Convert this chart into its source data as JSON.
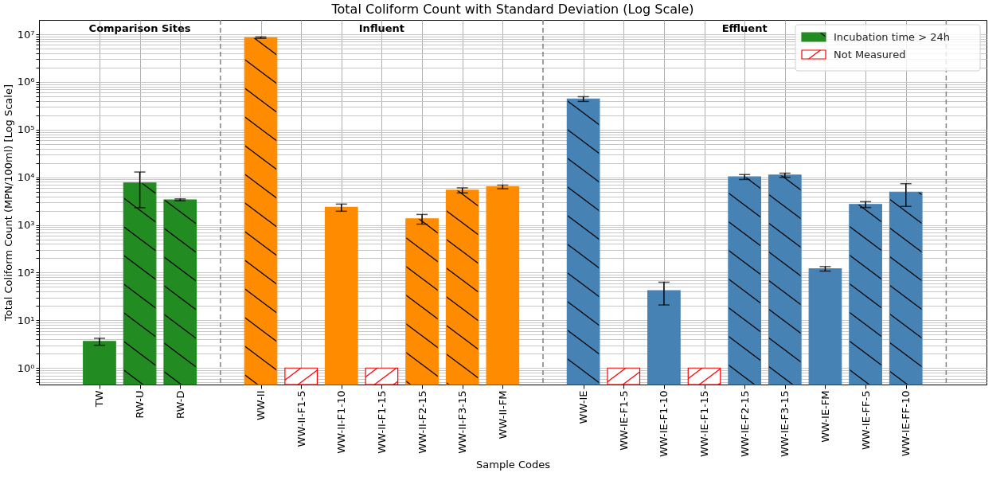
{
  "chart_data": {
    "type": "bar",
    "title": "Total Coliform Count with Standard Deviation (Log Scale)",
    "xlabel": "Sample Codes",
    "ylabel": "Total Coliform Count (MPN/100ml) [Log Scale]",
    "categories": [
      "TW",
      "RW-U",
      "RW-D",
      null,
      "WW-II",
      "WW-II-F1-5",
      "WW-II-F1-10",
      "WW-II-F1-15",
      "WW-II-F2-15",
      "WW-II-F3-15",
      "WW-II-FM",
      null,
      "WW-IE",
      "WW-IE-F1-5",
      "WW-IE-F1-10",
      "WW-IE-F1-15",
      "WW-IE-F2-15",
      "WW-IE-F3-15",
      "WW-IE-FM",
      "WW-IE-FF-5",
      "WW-IE-FF-10",
      null
    ],
    "log": "y",
    "ylim": [
      0.45,
      20000000
    ],
    "yticks": [
      {
        "value": 1,
        "label": "10⁰"
      },
      {
        "value": 10,
        "label": "10¹"
      },
      {
        "value": 100,
        "label": "10²"
      },
      {
        "value": 1000,
        "label": "10³"
      },
      {
        "value": 10000,
        "label": "10⁴"
      },
      {
        "value": 100000,
        "label": "10⁵"
      },
      {
        "value": 1000000,
        "label": "10⁶"
      },
      {
        "value": 10000000,
        "label": "10⁷"
      },
      {
        "value": 0.5,
        "label": null
      },
      {
        "value": 0.6,
        "label": null
      },
      {
        "value": 0.7,
        "label": null
      },
      {
        "value": 0.8,
        "label": null
      },
      {
        "value": 0.9,
        "label": null
      },
      {
        "value": 2,
        "label": null
      },
      {
        "value": 3,
        "label": null
      },
      {
        "value": 4,
        "label": null
      },
      {
        "value": 5,
        "label": null
      },
      {
        "value": 6,
        "label": null
      },
      {
        "value": 7,
        "label": null
      },
      {
        "value": 8,
        "label": null
      },
      {
        "value": 9,
        "label": null
      },
      {
        "value": 20,
        "label": null
      },
      {
        "value": 30,
        "label": null
      },
      {
        "value": 40,
        "label": null
      },
      {
        "value": 50,
        "label": null
      },
      {
        "value": 60,
        "label": null
      },
      {
        "value": 70,
        "label": null
      },
      {
        "value": 80,
        "label": null
      },
      {
        "value": 90,
        "label": null
      },
      {
        "value": 200,
        "label": null
      },
      {
        "value": 300,
        "label": null
      },
      {
        "value": 400,
        "label": null
      },
      {
        "value": 500,
        "label": null
      },
      {
        "value": 600,
        "label": null
      },
      {
        "value": 700,
        "label": null
      },
      {
        "value": 800,
        "label": null
      },
      {
        "value": 900,
        "label": null
      },
      {
        "value": 2000,
        "label": null
      },
      {
        "value": 3000,
        "label": null
      },
      {
        "value": 4000,
        "label": null
      },
      {
        "value": 5000,
        "label": null
      },
      {
        "value": 6000,
        "label": null
      },
      {
        "value": 7000,
        "label": null
      },
      {
        "value": 8000,
        "label": null
      },
      {
        "value": 9000,
        "label": null
      },
      {
        "value": 20000,
        "label": null
      },
      {
        "value": 30000,
        "label": null
      },
      {
        "value": 40000,
        "label": null
      },
      {
        "value": 50000,
        "label": null
      },
      {
        "value": 60000,
        "label": null
      },
      {
        "value": 70000,
        "label": null
      },
      {
        "value": 80000,
        "label": null
      },
      {
        "value": 90000,
        "label": null
      },
      {
        "value": 200000,
        "label": null
      },
      {
        "value": 300000,
        "label": null
      },
      {
        "value": 400000,
        "label": null
      },
      {
        "value": 500000,
        "label": null
      },
      {
        "value": 600000,
        "label": null
      },
      {
        "value": 700000,
        "label": null
      },
      {
        "value": 800000,
        "label": null
      },
      {
        "value": 900000,
        "label": null
      },
      {
        "value": 2000000,
        "label": null
      },
      {
        "value": 3000000,
        "label": null
      },
      {
        "value": 4000000,
        "label": null
      },
      {
        "value": 5000000,
        "label": null
      },
      {
        "value": 6000000,
        "label": null
      },
      {
        "value": 7000000,
        "label": null
      },
      {
        "value": 8000000,
        "label": null
      },
      {
        "value": 9000000,
        "label": null
      }
    ],
    "grid": true,
    "legend": "top right",
    "series": [
      {
        "name": "Incubation time > 24h",
        "color": "#228b22",
        "values": [
          null,
          7600,
          3370,
          null,
          8500000,
          null,
          null,
          null,
          1350,
          5350,
          null,
          null,
          440000,
          null,
          null,
          null,
          10200,
          11100,
          null,
          2700,
          4900,
          null
        ],
        "errors": [
          null,
          5300,
          150,
          null,
          300000,
          null,
          null,
          null,
          310,
          650,
          null,
          null,
          50000,
          null,
          null,
          null,
          1200,
          1100,
          null,
          380,
          2450,
          null
        ],
        "colors": [
          null,
          "#228b22",
          "#228b22",
          null,
          "#ff8c00",
          null,
          null,
          null,
          "#ff8c00",
          "#ff8c00",
          null,
          null,
          "#4682b4",
          null,
          null,
          null,
          "#4682b4",
          "#4682b4",
          null,
          "#4682b4",
          "#4682b4",
          null
        ]
      },
      {
        "values": [
          3.6,
          null,
          null,
          null,
          null,
          null,
          2340,
          null,
          null,
          null,
          6300,
          null,
          null,
          null,
          42,
          null,
          null,
          null,
          121,
          null,
          null,
          null
        ],
        "errors": [
          0.6,
          null,
          null,
          null,
          null,
          null,
          400,
          null,
          null,
          null,
          550,
          null,
          null,
          null,
          21,
          null,
          null,
          null,
          13,
          null,
          null,
          null
        ],
        "colors": [
          "#228b22",
          null,
          null,
          null,
          null,
          null,
          "#ff8c00",
          null,
          null,
          null,
          "#ff8c00",
          null,
          null,
          null,
          "#4682b4",
          null,
          null,
          null,
          "#4682b4",
          null,
          null,
          null
        ]
      },
      {
        "name": "Not Measured",
        "color": "#ff0000",
        "values": [
          null,
          null,
          null,
          null,
          null,
          1,
          null,
          1,
          null,
          null,
          null,
          null,
          null,
          1,
          null,
          1,
          null,
          null,
          null,
          null,
          null,
          null
        ]
      }
    ],
    "annotations": [
      "Comparison Sites",
      "Influent",
      "Effluent"
    ]
  }
}
